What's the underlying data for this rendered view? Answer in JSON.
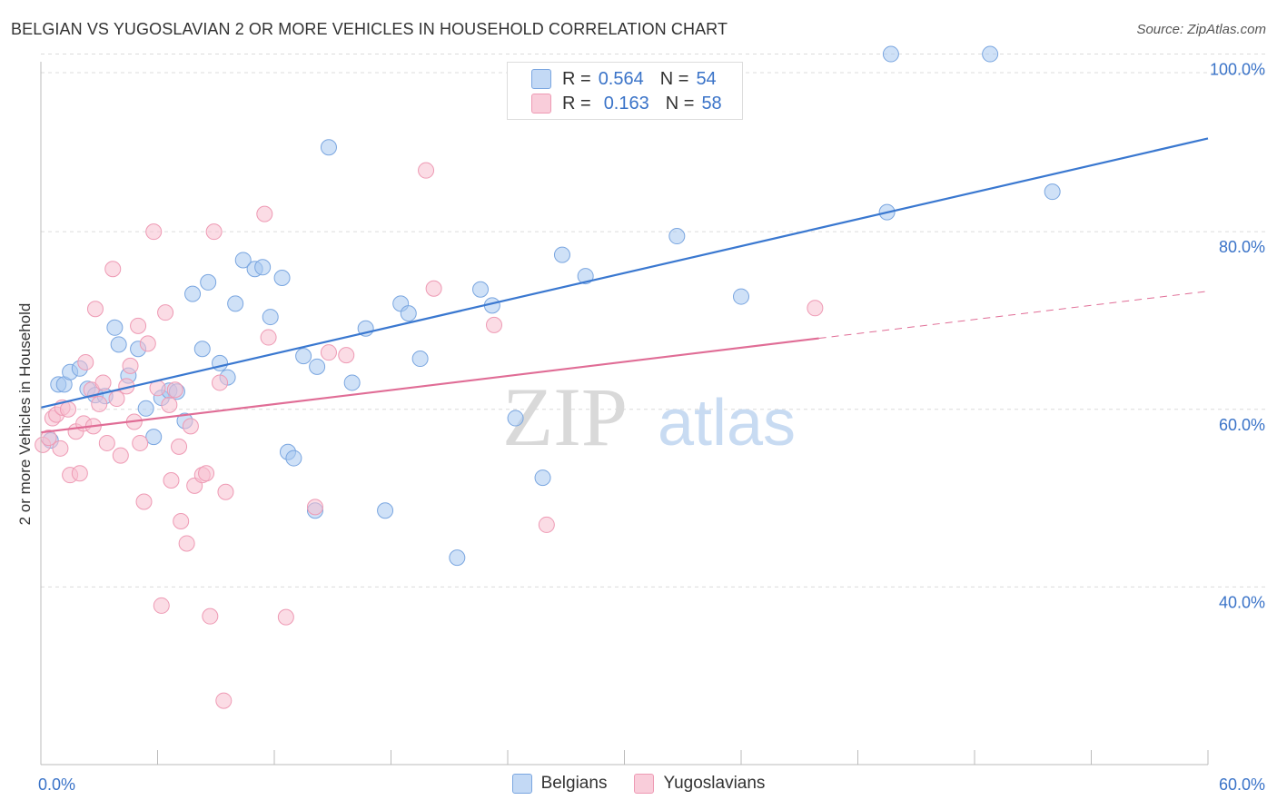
{
  "title": "BELGIAN VS YUGOSLAVIAN 2 OR MORE VEHICLES IN HOUSEHOLD CORRELATION CHART",
  "source": "Source: ZipAtlas.com",
  "watermark": {
    "zip": "ZIP",
    "atlas": "atlas"
  },
  "legend": {
    "r_label": "R =",
    "n_label": "N =",
    "rows": [
      {
        "name": "Belgians",
        "r": "0.564",
        "n": "54",
        "color": "#a8c8f0",
        "stroke": "#7aa6e0"
      },
      {
        "name": "Yugoslavians",
        "r": "0.163",
        "n": "58",
        "color": "#f7bfd0",
        "stroke": "#ee9ab4"
      }
    ]
  },
  "bottom_legend": [
    "Belgians",
    "Yugoslavians"
  ],
  "chart_data": {
    "type": "scatter",
    "title": "BELGIAN VS YUGOSLAVIAN 2 OR MORE VEHICLES IN HOUSEHOLD CORRELATION CHART",
    "xlabel": "",
    "ylabel": "2 or more Vehicles in Household",
    "xlim": [
      0,
      60
    ],
    "ylim": [
      20,
      102
    ],
    "x_tick_labels": [
      "0.0%",
      "60.0%"
    ],
    "y_ticks": [
      40,
      60,
      80,
      100
    ],
    "y_tick_labels": [
      "40.0%",
      "60.0%",
      "80.0%",
      "100.0%"
    ],
    "grid": true,
    "legend_position": "top-center",
    "series": [
      {
        "name": "Belgians",
        "color": "#a8c8f0",
        "stroke": "#7aa6e0",
        "line_color": "#3a78d0",
        "trend": {
          "x0": 0,
          "y0": 60.2,
          "x1": 60,
          "y1": 90.5,
          "dash_from": null
        },
        "points": [
          [
            0.5,
            56.5
          ],
          [
            0.9,
            62.8
          ],
          [
            1.2,
            62.8
          ],
          [
            1.5,
            64.2
          ],
          [
            2.0,
            64.6
          ],
          [
            2.4,
            62.3
          ],
          [
            2.8,
            61.6
          ],
          [
            3.3,
            61.5
          ],
          [
            3.8,
            69.2
          ],
          [
            4.0,
            67.3
          ],
          [
            4.5,
            63.8
          ],
          [
            5.0,
            66.8
          ],
          [
            5.4,
            60.1
          ],
          [
            5.8,
            56.9
          ],
          [
            6.2,
            61.3
          ],
          [
            6.6,
            62.1
          ],
          [
            7.0,
            62.0
          ],
          [
            7.4,
            58.7
          ],
          [
            7.8,
            73.0
          ],
          [
            8.3,
            66.8
          ],
          [
            8.6,
            74.3
          ],
          [
            9.2,
            65.2
          ],
          [
            9.6,
            63.6
          ],
          [
            10.0,
            71.9
          ],
          [
            10.4,
            76.8
          ],
          [
            11.0,
            75.8
          ],
          [
            11.4,
            76.0
          ],
          [
            11.8,
            70.4
          ],
          [
            12.4,
            74.8
          ],
          [
            12.7,
            55.2
          ],
          [
            13.0,
            54.5
          ],
          [
            13.5,
            66.0
          ],
          [
            14.1,
            48.6
          ],
          [
            14.2,
            64.8
          ],
          [
            14.8,
            89.5
          ],
          [
            16.0,
            63.0
          ],
          [
            16.7,
            69.1
          ],
          [
            17.7,
            48.6
          ],
          [
            18.5,
            71.9
          ],
          [
            18.9,
            70.8
          ],
          [
            19.5,
            65.7
          ],
          [
            21.4,
            43.3
          ],
          [
            22.6,
            73.5
          ],
          [
            23.2,
            71.7
          ],
          [
            24.4,
            59.0
          ],
          [
            25.8,
            52.3
          ],
          [
            26.8,
            77.4
          ],
          [
            28.0,
            75.0
          ],
          [
            32.7,
            79.5
          ],
          [
            36.0,
            72.7
          ],
          [
            43.5,
            82.2
          ],
          [
            43.7,
            100.0
          ],
          [
            48.8,
            100.0
          ],
          [
            52.0,
            84.5
          ]
        ]
      },
      {
        "name": "Yugoslavians",
        "color": "#f7bfd0",
        "stroke": "#ee9ab4",
        "line_color": "#e06d96",
        "trend": {
          "x0": 0,
          "y0": 57.4,
          "x1": 60,
          "y1": 73.3,
          "dash_from": 40.0
        },
        "points": [
          [
            0.1,
            56.0
          ],
          [
            0.4,
            56.8
          ],
          [
            0.6,
            59.0
          ],
          [
            0.8,
            59.4
          ],
          [
            1.0,
            55.6
          ],
          [
            1.1,
            60.2
          ],
          [
            1.4,
            60.0
          ],
          [
            1.5,
            52.6
          ],
          [
            1.8,
            57.5
          ],
          [
            2.0,
            52.8
          ],
          [
            2.2,
            58.4
          ],
          [
            2.3,
            65.3
          ],
          [
            2.6,
            62.2
          ],
          [
            2.7,
            58.1
          ],
          [
            2.8,
            71.3
          ],
          [
            3.0,
            60.6
          ],
          [
            3.2,
            63.0
          ],
          [
            3.4,
            56.2
          ],
          [
            3.7,
            75.8
          ],
          [
            3.9,
            61.2
          ],
          [
            4.1,
            54.8
          ],
          [
            4.4,
            62.6
          ],
          [
            4.6,
            64.9
          ],
          [
            4.8,
            58.6
          ],
          [
            5.0,
            69.4
          ],
          [
            5.1,
            56.2
          ],
          [
            5.3,
            49.6
          ],
          [
            5.5,
            67.4
          ],
          [
            5.8,
            80.0
          ],
          [
            6.0,
            62.4
          ],
          [
            6.2,
            37.9
          ],
          [
            6.4,
            70.9
          ],
          [
            6.6,
            60.5
          ],
          [
            6.7,
            52.0
          ],
          [
            6.9,
            62.2
          ],
          [
            7.1,
            55.8
          ],
          [
            7.2,
            47.4
          ],
          [
            7.5,
            44.9
          ],
          [
            7.7,
            58.1
          ],
          [
            7.9,
            51.4
          ],
          [
            8.3,
            52.6
          ],
          [
            8.5,
            52.8
          ],
          [
            8.7,
            36.7
          ],
          [
            8.9,
            80.0
          ],
          [
            9.2,
            63.0
          ],
          [
            9.4,
            27.2
          ],
          [
            9.5,
            50.7
          ],
          [
            11.5,
            82.0
          ],
          [
            11.7,
            68.1
          ],
          [
            12.6,
            36.6
          ],
          [
            14.1,
            49.0
          ],
          [
            14.8,
            66.4
          ],
          [
            15.7,
            66.1
          ],
          [
            19.8,
            86.9
          ],
          [
            20.2,
            73.6
          ],
          [
            23.3,
            69.5
          ],
          [
            26.0,
            47.0
          ],
          [
            39.8,
            71.4
          ]
        ]
      }
    ]
  }
}
